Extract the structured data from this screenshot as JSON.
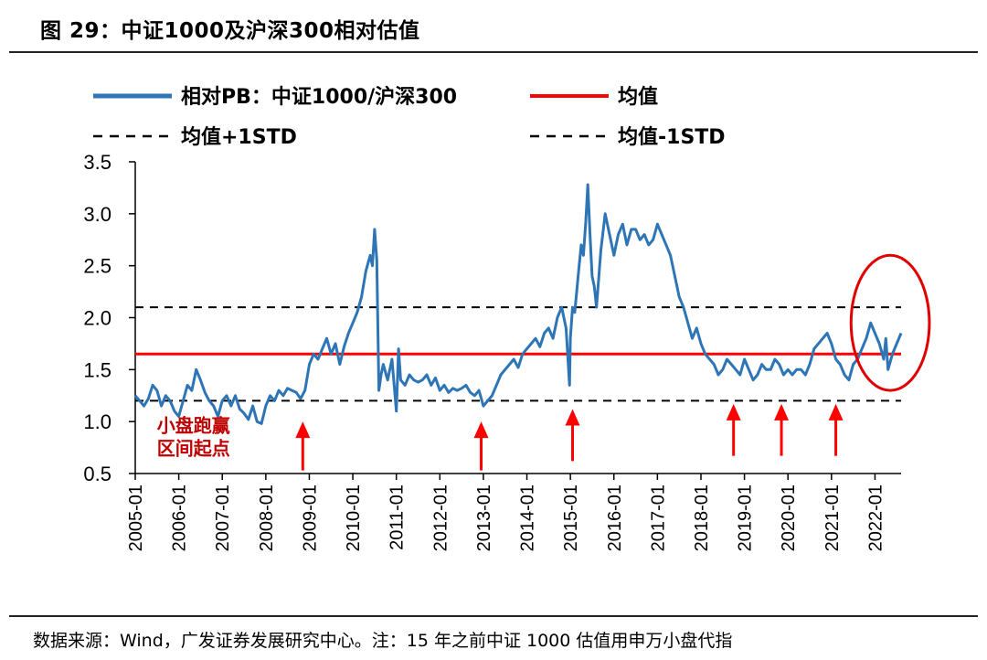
{
  "figure": {
    "title": "图 29：中证1000及沪深300相对估值",
    "source": "数据来源：Wind，广发证券发展研究中心。注：15 年之前中证 1000 估值用申万小盘代指"
  },
  "colors": {
    "series": "#2e75b6",
    "mean": "#ff0000",
    "std": "#000000",
    "arrow": "#ff0000",
    "circle": "#e00000"
  },
  "chart_data": {
    "type": "line",
    "title": "中证1000及沪深300相对估值",
    "xlabel": "",
    "ylabel": "",
    "ylim": [
      0.5,
      3.5
    ],
    "yticks": [
      "3.5",
      "3.0",
      "2.5",
      "2.0",
      "1.5",
      "1.0",
      "0.5"
    ],
    "x_range": [
      2005.0,
      2022.6
    ],
    "xticks": [
      "2005-01",
      "2006-01",
      "2007-01",
      "2008-01",
      "2009-01",
      "2010-01",
      "2011-01",
      "2012-01",
      "2013-01",
      "2014-01",
      "2015-01",
      "2016-01",
      "2017-01",
      "2018-01",
      "2019-01",
      "2020-01",
      "2021-01",
      "2022-01"
    ],
    "legend": [
      {
        "label": "相对PB：中证1000/沪深300",
        "style": "solid-blue"
      },
      {
        "label": "均值",
        "style": "solid-red"
      },
      {
        "label": "均值+1STD",
        "style": "dashed-black"
      },
      {
        "label": "均值-1STD",
        "style": "dashed-black"
      }
    ],
    "mean": 1.65,
    "upper_std": 2.1,
    "lower_std": 1.2,
    "series": [
      {
        "name": "相对PB：中证1000/沪深300",
        "x": [
          2005.0,
          2005.1,
          2005.2,
          2005.3,
          2005.4,
          2005.5,
          2005.6,
          2005.7,
          2005.8,
          2005.9,
          2006.0,
          2006.1,
          2006.2,
          2006.3,
          2006.4,
          2006.5,
          2006.6,
          2006.7,
          2006.8,
          2006.9,
          2007.0,
          2007.1,
          2007.2,
          2007.3,
          2007.4,
          2007.5,
          2007.6,
          2007.7,
          2007.8,
          2007.9,
          2008.0,
          2008.1,
          2008.2,
          2008.3,
          2008.4,
          2008.5,
          2008.6,
          2008.7,
          2008.8,
          2008.9,
          2009.0,
          2009.1,
          2009.2,
          2009.3,
          2009.4,
          2009.5,
          2009.6,
          2009.7,
          2009.8,
          2009.9,
          2010.0,
          2010.1,
          2010.2,
          2010.3,
          2010.4,
          2010.45,
          2010.5,
          2010.55,
          2010.6,
          2010.65,
          2010.7,
          2010.8,
          2010.9,
          2011.0,
          2011.05,
          2011.1,
          2011.2,
          2011.3,
          2011.4,
          2011.5,
          2011.6,
          2011.7,
          2011.8,
          2011.9,
          2012.0,
          2012.1,
          2012.2,
          2012.3,
          2012.4,
          2012.5,
          2012.6,
          2012.7,
          2012.8,
          2012.9,
          2013.0,
          2013.1,
          2013.2,
          2013.3,
          2013.4,
          2013.5,
          2013.6,
          2013.7,
          2013.8,
          2013.9,
          2014.0,
          2014.1,
          2014.2,
          2014.3,
          2014.4,
          2014.5,
          2014.6,
          2014.7,
          2014.8,
          2014.9,
          2014.98,
          2015.0,
          2015.05,
          2015.1,
          2015.2,
          2015.25,
          2015.3,
          2015.35,
          2015.4,
          2015.45,
          2015.5,
          2015.55,
          2015.6,
          2015.7,
          2015.8,
          2015.9,
          2016.0,
          2016.1,
          2016.2,
          2016.3,
          2016.4,
          2016.5,
          2016.6,
          2016.7,
          2016.8,
          2016.9,
          2017.0,
          2017.1,
          2017.2,
          2017.3,
          2017.4,
          2017.5,
          2017.6,
          2017.7,
          2017.8,
          2017.9,
          2018.0,
          2018.1,
          2018.2,
          2018.3,
          2018.4,
          2018.5,
          2018.6,
          2018.7,
          2018.8,
          2018.9,
          2019.0,
          2019.1,
          2019.2,
          2019.3,
          2019.4,
          2019.5,
          2019.6,
          2019.7,
          2019.8,
          2019.9,
          2020.0,
          2020.1,
          2020.2,
          2020.3,
          2020.4,
          2020.5,
          2020.6,
          2020.7,
          2020.8,
          2020.9,
          2021.0,
          2021.1,
          2021.2,
          2021.3,
          2021.4,
          2021.5,
          2021.6,
          2021.7,
          2021.8,
          2021.9,
          2022.0,
          2022.1,
          2022.2,
          2022.25,
          2022.3,
          2022.4,
          2022.5,
          2022.6
        ],
        "y": [
          1.25,
          1.2,
          1.15,
          1.22,
          1.35,
          1.3,
          1.15,
          1.25,
          1.2,
          1.1,
          1.05,
          1.2,
          1.35,
          1.3,
          1.5,
          1.4,
          1.28,
          1.2,
          1.15,
          1.05,
          1.2,
          1.25,
          1.15,
          1.25,
          1.12,
          1.08,
          1.02,
          1.15,
          1.0,
          0.98,
          1.15,
          1.25,
          1.2,
          1.3,
          1.25,
          1.32,
          1.3,
          1.28,
          1.22,
          1.3,
          1.55,
          1.65,
          1.6,
          1.7,
          1.8,
          1.65,
          1.75,
          1.55,
          1.72,
          1.85,
          1.95,
          2.05,
          2.2,
          2.45,
          2.6,
          2.5,
          2.85,
          2.55,
          1.3,
          1.45,
          1.55,
          1.4,
          1.6,
          1.1,
          1.7,
          1.4,
          1.35,
          1.45,
          1.4,
          1.38,
          1.4,
          1.45,
          1.35,
          1.42,
          1.3,
          1.35,
          1.28,
          1.32,
          1.3,
          1.32,
          1.35,
          1.28,
          1.25,
          1.3,
          1.15,
          1.2,
          1.25,
          1.35,
          1.45,
          1.5,
          1.55,
          1.6,
          1.52,
          1.65,
          1.7,
          1.75,
          1.8,
          1.72,
          1.85,
          1.9,
          1.8,
          2.0,
          2.1,
          1.9,
          1.35,
          1.8,
          2.1,
          2.05,
          2.5,
          2.7,
          2.6,
          2.9,
          3.28,
          2.8,
          2.4,
          2.3,
          2.1,
          2.65,
          3.0,
          2.8,
          2.6,
          2.8,
          2.9,
          2.7,
          2.85,
          2.85,
          2.75,
          2.8,
          2.7,
          2.75,
          2.9,
          2.8,
          2.7,
          2.6,
          2.4,
          2.2,
          2.1,
          1.95,
          1.8,
          1.9,
          1.75,
          1.65,
          1.6,
          1.55,
          1.45,
          1.5,
          1.6,
          1.55,
          1.5,
          1.45,
          1.6,
          1.5,
          1.4,
          1.45,
          1.55,
          1.5,
          1.5,
          1.6,
          1.55,
          1.45,
          1.5,
          1.45,
          1.5,
          1.5,
          1.45,
          1.55,
          1.7,
          1.75,
          1.8,
          1.85,
          1.75,
          1.6,
          1.55,
          1.45,
          1.4,
          1.55,
          1.6,
          1.7,
          1.8,
          1.95,
          1.85,
          1.75,
          1.6,
          1.8,
          1.5,
          1.65,
          1.75,
          1.85
        ]
      }
    ],
    "arrows": [
      {
        "x": 2008.85,
        "from_y": 1.0,
        "to_y": 0.53
      },
      {
        "x": 2012.95,
        "from_y": 1.0,
        "to_y": 0.53
      },
      {
        "x": 2015.05,
        "from_y": 1.12,
        "to_y": 0.62
      },
      {
        "x": 2018.75,
        "from_y": 1.17,
        "to_y": 0.67
      },
      {
        "x": 2019.85,
        "from_y": 1.17,
        "to_y": 0.67
      },
      {
        "x": 2021.1,
        "from_y": 1.17,
        "to_y": 0.67
      }
    ],
    "annotations": [
      {
        "text": "小盘跑赢",
        "x": 2005.5,
        "y": 0.9
      },
      {
        "text": "区间起点",
        "x": 2005.5,
        "y": 0.68
      }
    ],
    "highlight_circle": {
      "cx": 2022.35,
      "cy": 1.95,
      "rx_years": 0.9,
      "ry_value": 0.65
    }
  }
}
